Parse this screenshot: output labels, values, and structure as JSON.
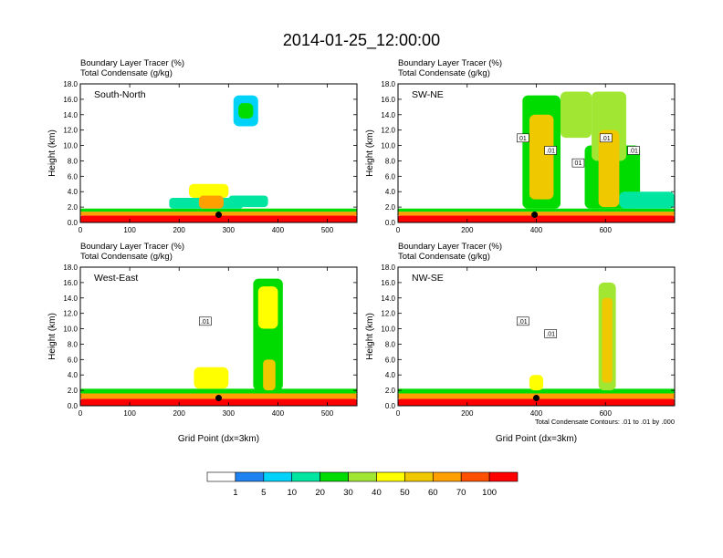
{
  "page_title": "2014-01-25_12:00:00",
  "colors": {
    "levels": [
      "#ffffff",
      "#1e82f0",
      "#00d2fa",
      "#00e6a0",
      "#00dc00",
      "#a0e632",
      "#ffff00",
      "#f0c800",
      "#ffa000",
      "#ff5000",
      "#ff0000"
    ]
  },
  "chart_data": [
    {
      "type": "heatmap",
      "id": "south-north",
      "panel_label": "South-North",
      "subtitle_line1": "Boundary Layer Tracer   (%)",
      "subtitle_line2": "Total Condensate   (g/kg)",
      "ylabel": "Height (km)",
      "xlabel": "",
      "xlim": [
        0,
        560
      ],
      "ylim": [
        0,
        18
      ],
      "xticks": [
        "0",
        "100",
        "200",
        "300",
        "400",
        "500"
      ],
      "yticks": [
        "0.0",
        "2.0",
        "4.0",
        "6.0",
        "8.0",
        "10.0",
        "12.0",
        "14.0",
        "16.0",
        "18.0"
      ],
      "marker": {
        "x": 280,
        "y": 1.0
      },
      "blobs": [
        {
          "x0": 0,
          "x1": 560,
          "y0": 0,
          "y1": 0.9,
          "level": 10
        },
        {
          "x0": 0,
          "x1": 560,
          "y0": 0.9,
          "y1": 1.4,
          "level": 8
        },
        {
          "x0": 0,
          "x1": 560,
          "y0": 1.4,
          "y1": 1.8,
          "level": 4
        },
        {
          "x0": 180,
          "x1": 330,
          "y0": 1.8,
          "y1": 3.2,
          "level": 3
        },
        {
          "x0": 220,
          "x1": 300,
          "y0": 3.2,
          "y1": 5.0,
          "level": 6
        },
        {
          "x0": 240,
          "x1": 290,
          "y0": 1.8,
          "y1": 3.5,
          "level": 8
        },
        {
          "x0": 300,
          "x1": 380,
          "y0": 2.0,
          "y1": 3.5,
          "level": 3
        },
        {
          "x0": 310,
          "x1": 360,
          "y0": 12.5,
          "y1": 16.5,
          "level": 2
        },
        {
          "x0": 320,
          "x1": 350,
          "y0": 13.5,
          "y1": 15.5,
          "level": 4
        }
      ],
      "contour_labels": []
    },
    {
      "type": "heatmap",
      "id": "sw-ne",
      "panel_label": "SW-NE",
      "subtitle_line1": "Boundary Layer Tracer   (%)",
      "subtitle_line2": "Total Condensate   (g/kg)",
      "ylabel": "Height (km)",
      "xlabel": "",
      "xlim": [
        0,
        800
      ],
      "ylim": [
        0,
        18
      ],
      "xticks": [
        "0",
        "200",
        "400",
        "600"
      ],
      "yticks": [
        "0.0",
        "2.0",
        "4.0",
        "6.0",
        "8.0",
        "10.0",
        "12.0",
        "14.0",
        "16.0",
        "18.0"
      ],
      "marker": {
        "x": 395,
        "y": 1.0
      },
      "blobs": [
        {
          "x0": 0,
          "x1": 800,
          "y0": 0,
          "y1": 0.9,
          "level": 10
        },
        {
          "x0": 0,
          "x1": 800,
          "y0": 0.9,
          "y1": 1.4,
          "level": 8
        },
        {
          "x0": 0,
          "x1": 800,
          "y0": 1.4,
          "y1": 1.8,
          "level": 4
        },
        {
          "x0": 360,
          "x1": 470,
          "y0": 1.8,
          "y1": 16.5,
          "level": 4
        },
        {
          "x0": 380,
          "x1": 450,
          "y0": 3.0,
          "y1": 14.0,
          "level": 7
        },
        {
          "x0": 470,
          "x1": 560,
          "y0": 11.0,
          "y1": 17.0,
          "level": 5
        },
        {
          "x0": 540,
          "x1": 700,
          "y0": 1.8,
          "y1": 10.0,
          "level": 4
        },
        {
          "x0": 560,
          "x1": 660,
          "y0": 8.0,
          "y1": 17.0,
          "level": 5
        },
        {
          "x0": 580,
          "x1": 640,
          "y0": 2.0,
          "y1": 12.0,
          "level": 7
        },
        {
          "x0": 640,
          "x1": 800,
          "y0": 1.8,
          "y1": 4.0,
          "level": 3
        }
      ],
      "contour_labels": [
        "01",
        ".01",
        "01",
        ".01",
        ".01"
      ]
    },
    {
      "type": "heatmap",
      "id": "west-east",
      "panel_label": "West-East",
      "subtitle_line1": "Boundary Layer Tracer   (%)",
      "subtitle_line2": "Total Condensate   (g/kg)",
      "ylabel": "Height (km)",
      "xlabel": "Grid Point (dx=3km)",
      "xlim": [
        0,
        560
      ],
      "ylim": [
        0,
        18
      ],
      "xticks": [
        "0",
        "100",
        "200",
        "300",
        "400",
        "500"
      ],
      "yticks": [
        "0.0",
        "2.0",
        "4.0",
        "6.0",
        "8.0",
        "10.0",
        "12.0",
        "14.0",
        "16.0",
        "18.0"
      ],
      "marker": {
        "x": 280,
        "y": 1.0
      },
      "blobs": [
        {
          "x0": 0,
          "x1": 560,
          "y0": 0,
          "y1": 0.9,
          "level": 10
        },
        {
          "x0": 0,
          "x1": 560,
          "y0": 0.9,
          "y1": 1.6,
          "level": 8
        },
        {
          "x0": 0,
          "x1": 560,
          "y0": 1.6,
          "y1": 2.2,
          "level": 4
        },
        {
          "x0": 230,
          "x1": 300,
          "y0": 2.2,
          "y1": 5.0,
          "level": 6
        },
        {
          "x0": 350,
          "x1": 410,
          "y0": 2.0,
          "y1": 16.5,
          "level": 4
        },
        {
          "x0": 360,
          "x1": 400,
          "y0": 10.0,
          "y1": 15.5,
          "level": 6
        },
        {
          "x0": 370,
          "x1": 395,
          "y0": 2.0,
          "y1": 6.0,
          "level": 7
        }
      ],
      "contour_labels": [
        ".01"
      ]
    },
    {
      "type": "heatmap",
      "id": "nw-se",
      "panel_label": "NW-SE",
      "subtitle_line1": "Boundary Layer Tracer   (%)",
      "subtitle_line2": "Total Condensate   (g/kg)",
      "ylabel": "Height (km)",
      "xlabel": "Grid Point (dx=3km)",
      "xlim": [
        0,
        800
      ],
      "ylim": [
        0,
        18
      ],
      "xticks": [
        "0",
        "200",
        "400",
        "600"
      ],
      "yticks": [
        "0.0",
        "2.0",
        "4.0",
        "6.0",
        "8.0",
        "10.0",
        "12.0",
        "14.0",
        "16.0",
        "18.0"
      ],
      "marker": {
        "x": 400,
        "y": 1.0
      },
      "blobs": [
        {
          "x0": 0,
          "x1": 800,
          "y0": 0,
          "y1": 0.9,
          "level": 10
        },
        {
          "x0": 0,
          "x1": 800,
          "y0": 0.9,
          "y1": 1.6,
          "level": 8
        },
        {
          "x0": 0,
          "x1": 800,
          "y0": 1.6,
          "y1": 2.2,
          "level": 4
        },
        {
          "x0": 580,
          "x1": 630,
          "y0": 2.0,
          "y1": 16.0,
          "level": 5
        },
        {
          "x0": 590,
          "x1": 620,
          "y0": 3.0,
          "y1": 14.0,
          "level": 7
        },
        {
          "x0": 380,
          "x1": 420,
          "y0": 2.0,
          "y1": 4.0,
          "level": 6
        }
      ],
      "contour_labels": [
        ".01",
        ".01"
      ],
      "note": "Total Condensate Contours: .01 to .01 by .000"
    }
  ],
  "colorbar": {
    "labels": [
      "1",
      "5",
      "10",
      "20",
      "30",
      "40",
      "50",
      "60",
      "70",
      "100"
    ]
  }
}
